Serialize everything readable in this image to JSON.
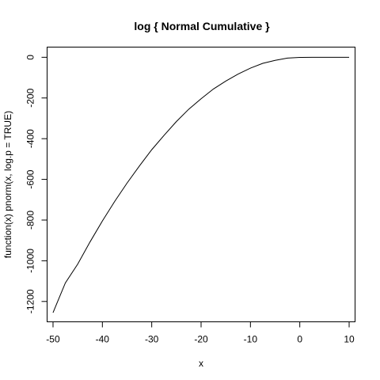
{
  "chart_data": {
    "type": "line",
    "title": "log { Normal Cumulative }",
    "xlabel": "x",
    "ylabel": "function(x) pnorm(x, log.p = TRUE)",
    "xlim": [
      -51.2,
      11.2
    ],
    "ylim": [
      -1300,
      50
    ],
    "x_ticks": [
      -50,
      -40,
      -30,
      -20,
      -10,
      0,
      10
    ],
    "y_ticks": [
      0,
      -200,
      -400,
      -600,
      -800,
      -1000,
      -1200
    ],
    "grid": false,
    "legend": "none",
    "series": [
      {
        "x": [
          -50,
          -47.5,
          -45,
          -42.5,
          -40,
          -37.5,
          -35,
          -32.5,
          -30,
          -27.5,
          -25,
          -22.5,
          -20,
          -17.5,
          -15,
          -12.5,
          -10,
          -7.5,
          -5,
          -2.5,
          0,
          2.5,
          5,
          7.5,
          10
        ],
        "y": [
          -1254.8,
          -1108.6,
          -1016.5,
          -907.3,
          -804.6,
          -708.2,
          -618.1,
          -534.3,
          -454.3,
          -383.6,
          -315.8,
          -255.2,
          -203.9,
          -155.8,
          -116.9,
          -82.4,
          -53.2,
          -29.8,
          -15.1,
          -4.2,
          -0.69,
          -0.006,
          0,
          0,
          0
        ]
      }
    ]
  }
}
